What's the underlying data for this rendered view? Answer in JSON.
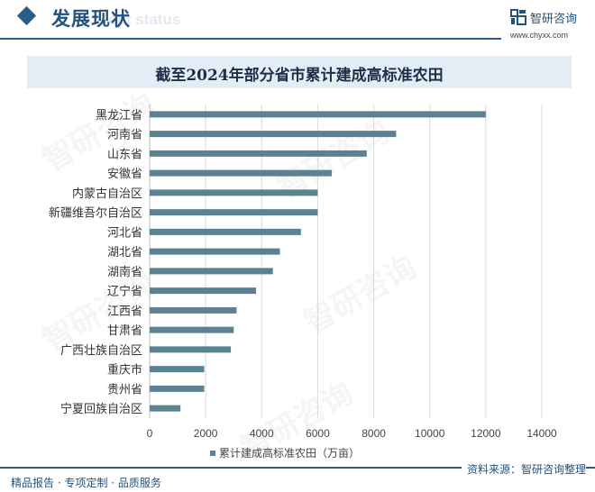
{
  "header": {
    "title": "发展现状",
    "subtitle_ghost": "ent status",
    "brand_name": "智研咨询",
    "brand_url": "www.chyxx.com"
  },
  "watermark_text": "智研咨询",
  "footer": {
    "left": "精品报告 · 专项定制 · 品质服务",
    "source": "资料来源：智研咨询整理"
  },
  "colors": {
    "bar": "#5b8290",
    "accent": "#2a5c86",
    "grid": "#d9d9d9",
    "band": "#e3edf6"
  },
  "chart_data": {
    "type": "bar",
    "orientation": "horizontal",
    "title": "截至2024年部分省市累计建成高标准农田",
    "categories": [
      "黑龙江省",
      "河南省",
      "山东省",
      "安徽省",
      "内蒙古自治区",
      "新疆维吾尔自治区",
      "河北省",
      "湖北省",
      "湖南省",
      "辽宁省",
      "江西省",
      "甘肃省",
      "广西壮族自治区",
      "重庆市",
      "贵州省",
      "宁夏回族自治区"
    ],
    "series": [
      {
        "name": "累计建成高标准农田（万亩）",
        "values": [
          12000,
          8800,
          7750,
          6500,
          6000,
          6000,
          5400,
          4650,
          4400,
          3800,
          3100,
          3000,
          2900,
          1950,
          1950,
          1100
        ]
      }
    ],
    "xlim": [
      0,
      14000
    ],
    "xticks": [
      "0",
      "2000",
      "4000",
      "6000",
      "8000",
      "10000",
      "12000",
      "14000"
    ],
    "xtick_values": [
      0,
      2000,
      4000,
      6000,
      8000,
      10000,
      12000,
      14000
    ],
    "grid": true,
    "legend_position": "bottom"
  }
}
